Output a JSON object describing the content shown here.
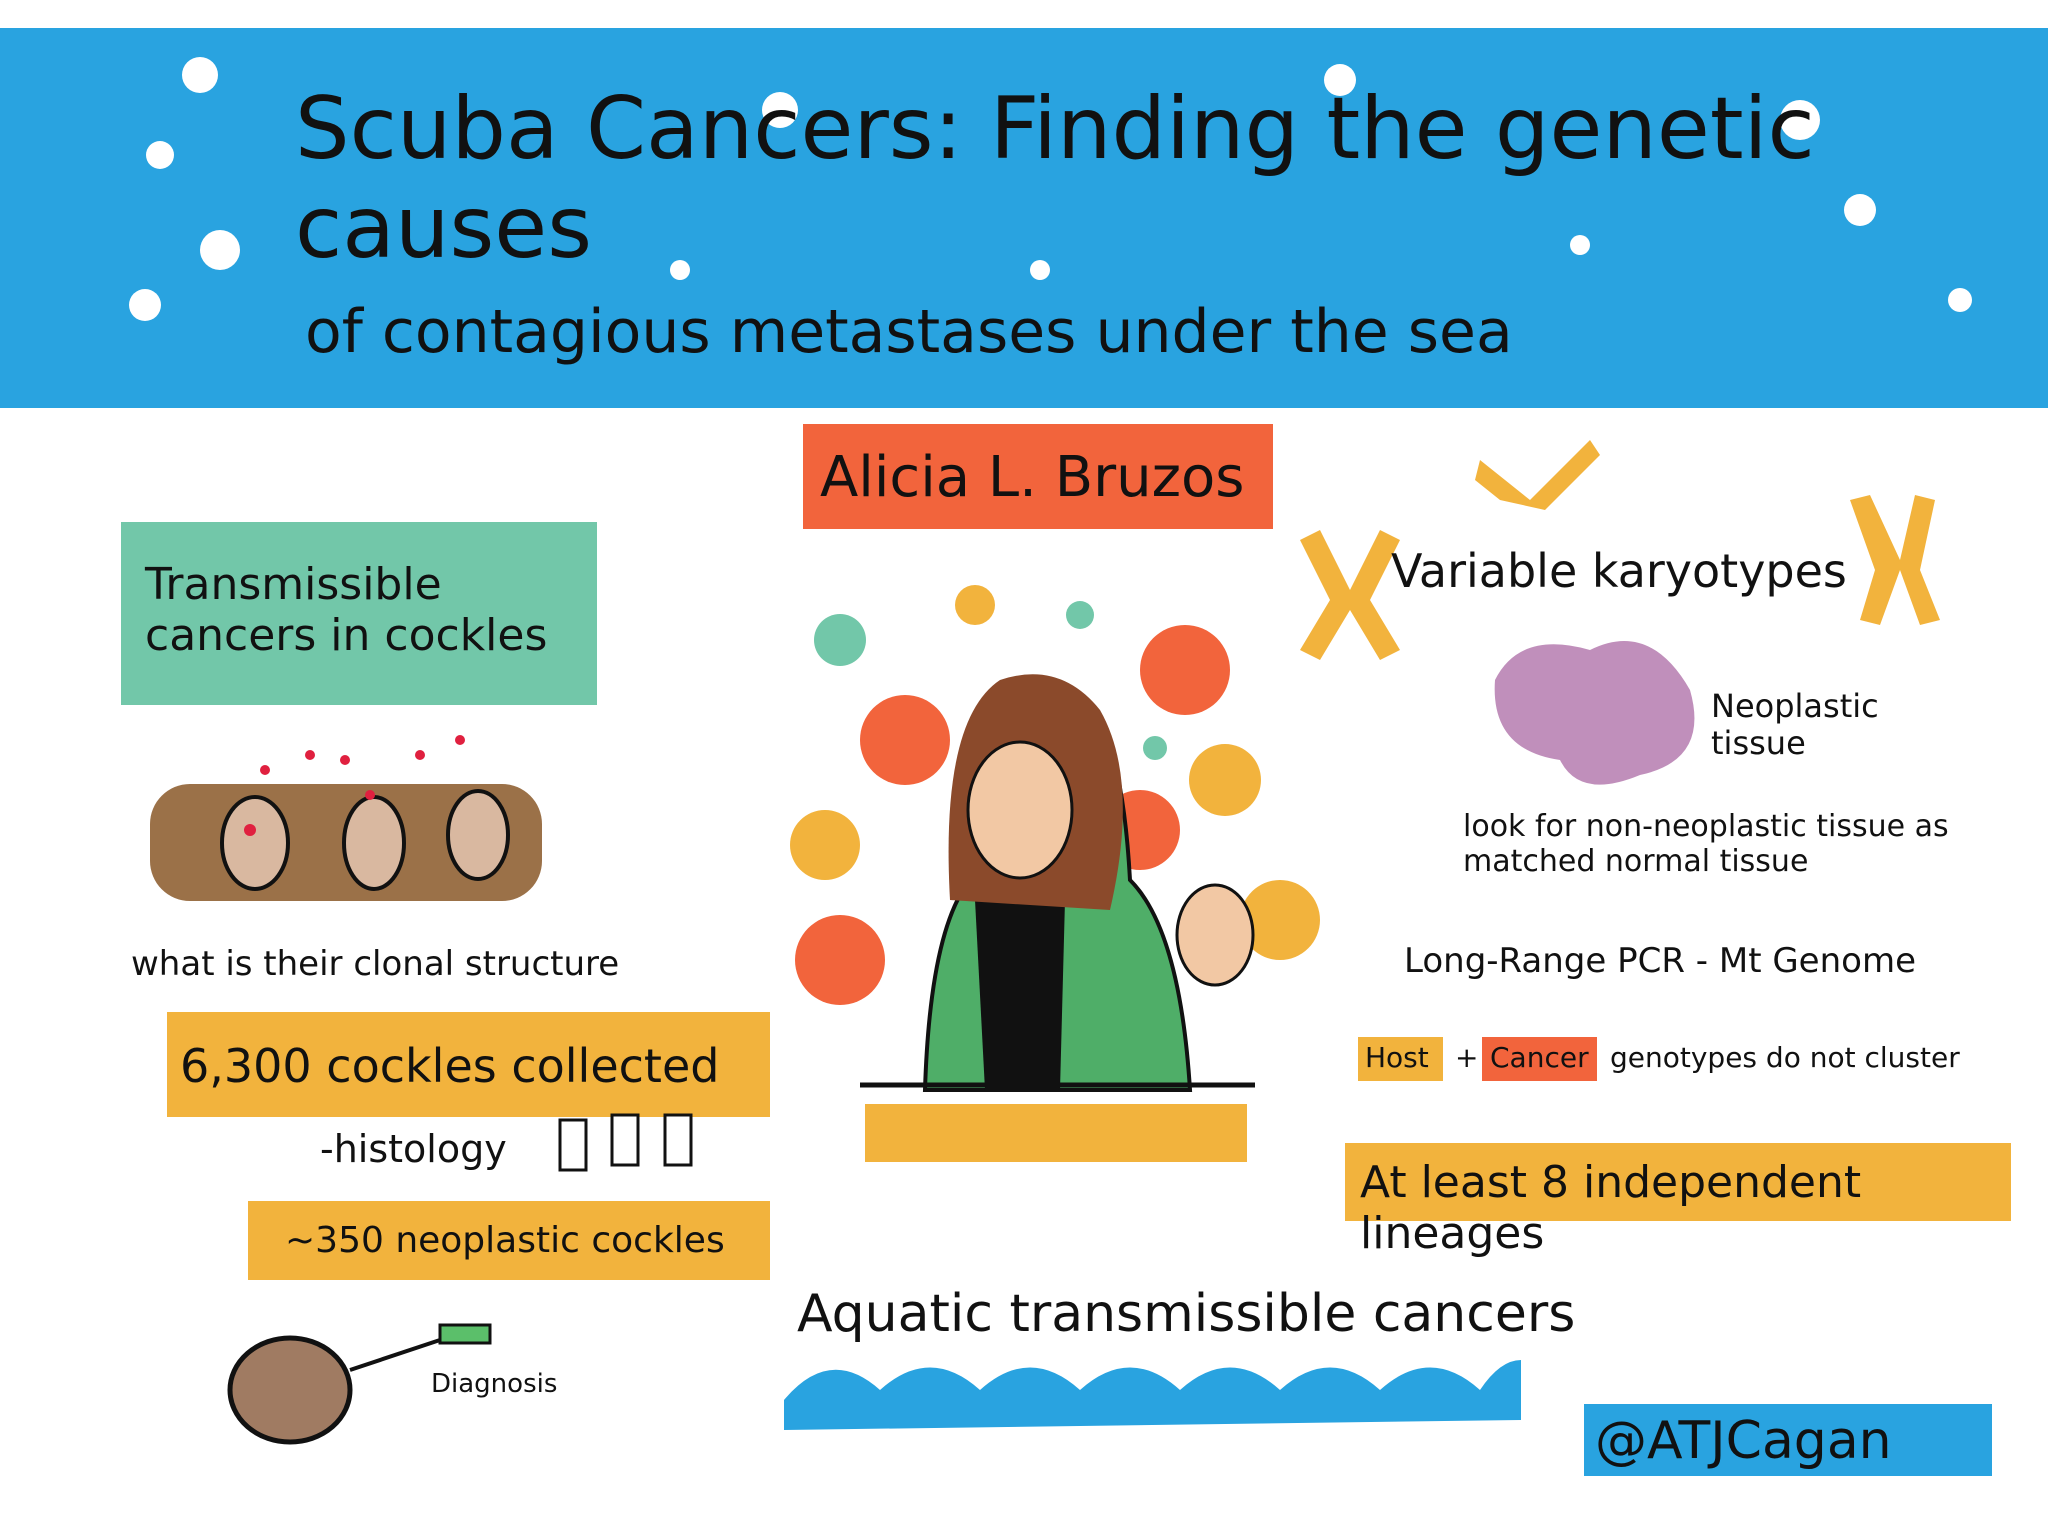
{
  "header": {
    "title_line1": "Scuba Cancers: Finding the genetic causes",
    "title_line2": "of contagious metastases under the sea"
  },
  "speaker": "Alicia L. Bruzos",
  "left": {
    "box": "Transmissible cancers in cockles",
    "question": "what is their clonal structure",
    "collected": "6,300 cockles collected",
    "histology": "-histology",
    "neoplastic": "~350 neoplastic cockles",
    "diagnosis": "Diagnosis"
  },
  "right": {
    "karyotypes": "Variable karyotypes",
    "tissue": "Neoplastic tissue",
    "matched": "look for non-neoplastic tissue as matched normal tissue",
    "pcr": "Long-Range PCR - Mt Genome",
    "host": "Host",
    "plus": "+",
    "cancer": "Cancer",
    "genotypes": "genotypes do not cluster",
    "lineages": "At least 8 independent lineages"
  },
  "bottom": {
    "aquatic": "Aquatic transmissible cancers",
    "handle": "@ATJCagan"
  }
}
